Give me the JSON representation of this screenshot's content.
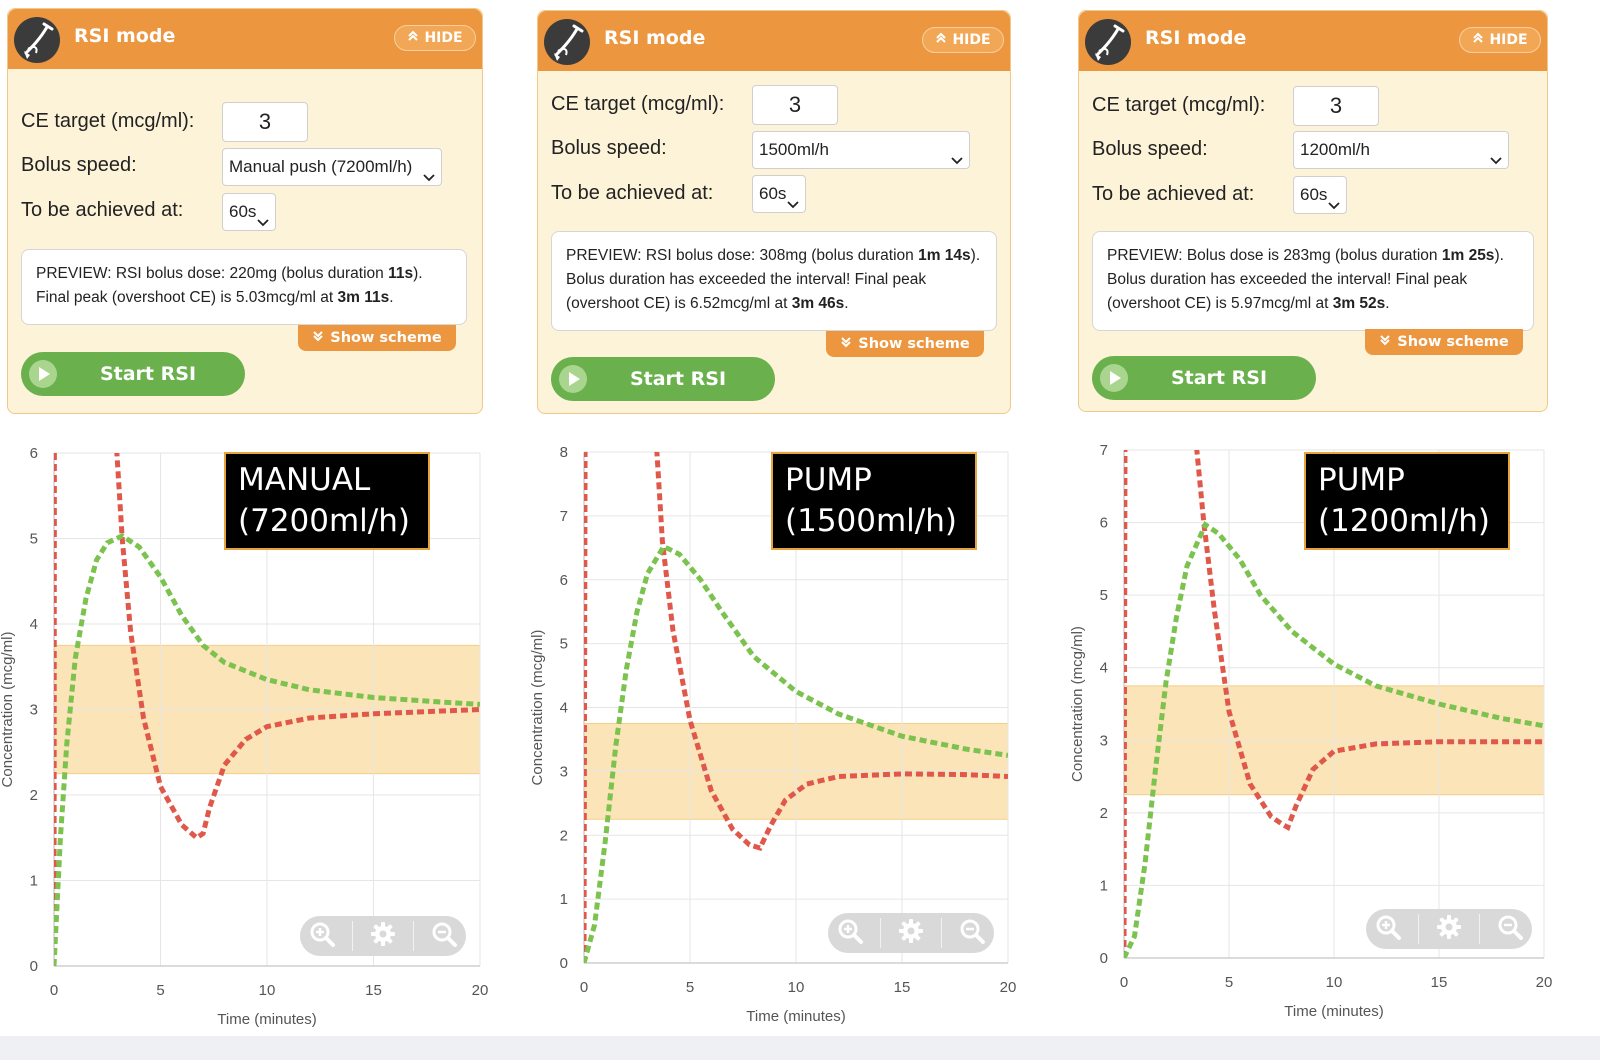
{
  "colors": {
    "header": "#ec9640",
    "panel_bg": "#fdf3d9",
    "start": "#6ab04c",
    "target_band": "#fbe4b8",
    "plasma_line": "#e0584a",
    "effect_line": "#7cc24e"
  },
  "icons": {
    "logo": "syringe-logo-icon",
    "hide": "double-chevron-up-icon",
    "scheme": "double-chevron-down-icon",
    "start": "play-icon",
    "zoom_in": "zoom-in-icon",
    "settings": "gear-icon",
    "zoom_out": "zoom-out-icon"
  },
  "panels": [
    {
      "title": "RSI mode",
      "hide_label": "HIDE",
      "ce_label": "CE target (mcg/ml):",
      "ce_value": "3",
      "bolus_label": "Bolus speed:",
      "bolus_value": "Manual push (7200ml/h)",
      "achieve_label": "To be achieved at:",
      "achieve_value": "60s",
      "preview": {
        "p1": "PREVIEW: RSI bolus dose: 220mg (bolus duration ",
        "b1": "11s",
        "p2": "). Final peak (overshoot CE) is 5.03mcg/ml at ",
        "b2": "3m 11s",
        "p3": "."
      },
      "scheme_label": "Show scheme",
      "start_label": "Start RSI"
    },
    {
      "title": "RSI mode",
      "hide_label": "HIDE",
      "ce_label": "CE target (mcg/ml):",
      "ce_value": "3",
      "bolus_label": "Bolus speed:",
      "bolus_value": "1500ml/h",
      "achieve_label": "To be achieved at:",
      "achieve_value": "60s",
      "preview": {
        "p1": "PREVIEW: RSI bolus dose: 308mg (bolus duration ",
        "b1": "1m 14s",
        "p2": "). Bolus duration has exceeded the interval! Final peak (overshoot CE) is 6.52mcg/ml at ",
        "b2": "3m 46s",
        "p3": "."
      },
      "scheme_label": "Show scheme",
      "start_label": "Start RSI"
    },
    {
      "title": "RSI mode",
      "hide_label": "HIDE",
      "ce_label": "CE target (mcg/ml):",
      "ce_value": "3",
      "bolus_label": "Bolus speed:",
      "bolus_value": "1200ml/h",
      "achieve_label": "To be achieved at:",
      "achieve_value": "60s",
      "preview": {
        "p1": "PREVIEW: Bolus dose is 283mg (bolus duration ",
        "b1": "1m 25s",
        "p2": "). Bolus duration has exceeded the interval! Final peak (overshoot CE) is 5.97mcg/ml at ",
        "b2": "3m 52s",
        "p3": "."
      },
      "scheme_label": "Show scheme",
      "start_label": "Start RSI"
    }
  ],
  "chart_data": [
    {
      "type": "line",
      "title": "",
      "overlay_label": [
        "MANUAL",
        "(7200ml/h)"
      ],
      "xlabel": "Time (minutes)",
      "ylabel": "Concentration (mcg/ml)",
      "xlim": [
        0,
        20
      ],
      "ylim": [
        0,
        6
      ],
      "xticks": [
        0,
        5,
        10,
        15,
        20
      ],
      "yticks": [
        0,
        1,
        2,
        3,
        4,
        5,
        6
      ],
      "target_band": [
        2.25,
        3.75
      ],
      "grid": true,
      "series": [
        {
          "line": "plasma",
          "x": [
            0,
            0.02,
            0.05,
            0.08,
            2.9,
            3.2,
            3.6,
            4.2,
            5.0,
            6.0,
            6.7,
            7.0,
            7.3,
            8.0,
            9.0,
            10.0,
            12.0,
            15.0,
            18.0,
            20.0
          ],
          "y": [
            0,
            6.2,
            6.2,
            6.2,
            6.2,
            5.0,
            3.9,
            2.9,
            2.1,
            1.65,
            1.5,
            1.55,
            1.85,
            2.35,
            2.65,
            2.8,
            2.9,
            2.95,
            2.98,
            3.0
          ]
        },
        {
          "line": "effect",
          "x": [
            0,
            0.3,
            0.6,
            1.0,
            1.5,
            2.0,
            2.5,
            3.2,
            4.0,
            5.0,
            6.0,
            7.0,
            8.0,
            10.0,
            12.0,
            15.0,
            18.0,
            20.0
          ],
          "y": [
            0,
            1.5,
            2.6,
            3.6,
            4.3,
            4.75,
            4.95,
            5.03,
            4.9,
            4.55,
            4.1,
            3.75,
            3.55,
            3.35,
            3.23,
            3.14,
            3.09,
            3.06
          ]
        }
      ]
    },
    {
      "type": "line",
      "title": "",
      "overlay_label": [
        "PUMP",
        "(1500ml/h)"
      ],
      "xlabel": "Time (minutes)",
      "ylabel": "Concentration (mcg/ml)",
      "xlim": [
        0,
        20
      ],
      "ylim": [
        0,
        8
      ],
      "xticks": [
        0,
        5,
        10,
        15,
        20
      ],
      "yticks": [
        0,
        1,
        2,
        3,
        4,
        5,
        6,
        7,
        8
      ],
      "target_band": [
        2.25,
        3.75
      ],
      "grid": true,
      "series": [
        {
          "line": "plasma",
          "x": [
            0,
            0.05,
            0.1,
            3.4,
            3.7,
            4.2,
            5.0,
            6.0,
            7.0,
            7.8,
            8.3,
            8.8,
            9.5,
            10.5,
            12.0,
            15.0,
            18.0,
            20.0
          ],
          "y": [
            0,
            8.2,
            8.2,
            8.2,
            6.6,
            5.2,
            3.8,
            2.7,
            2.1,
            1.85,
            1.8,
            2.15,
            2.55,
            2.8,
            2.92,
            2.96,
            2.95,
            2.92
          ]
        },
        {
          "line": "effect",
          "x": [
            0,
            0.5,
            1.0,
            1.5,
            2.0,
            2.5,
            3.0,
            3.76,
            4.5,
            5.5,
            6.5,
            8.0,
            10.0,
            12.0,
            15.0,
            18.0,
            20.0
          ],
          "y": [
            0,
            0.6,
            1.9,
            3.4,
            4.6,
            5.5,
            6.1,
            6.52,
            6.4,
            6.0,
            5.5,
            4.8,
            4.25,
            3.9,
            3.55,
            3.35,
            3.25
          ]
        }
      ]
    },
    {
      "type": "line",
      "title": "",
      "overlay_label": [
        "PUMP",
        "(1200ml/h)"
      ],
      "xlabel": "Time (minutes)",
      "ylabel": "Concentration (mcg/ml)",
      "xlim": [
        0,
        20
      ],
      "ylim": [
        0,
        7
      ],
      "xticks": [
        0,
        5,
        10,
        15,
        20
      ],
      "yticks": [
        0,
        1,
        2,
        3,
        4,
        5,
        6,
        7
      ],
      "target_band": [
        2.25,
        3.75
      ],
      "grid": true,
      "series": [
        {
          "line": "plasma",
          "x": [
            0,
            0.05,
            0.1,
            3.4,
            3.8,
            4.3,
            5.0,
            6.0,
            7.0,
            7.5,
            7.8,
            8.2,
            9.0,
            10.0,
            12.0,
            15.0,
            18.0,
            20.0
          ],
          "y": [
            0,
            7.2,
            7.2,
            7.2,
            6.0,
            4.8,
            3.4,
            2.4,
            1.95,
            1.85,
            1.8,
            2.1,
            2.6,
            2.85,
            2.95,
            2.98,
            2.98,
            2.98
          ]
        },
        {
          "line": "effect",
          "x": [
            0,
            0.5,
            1.0,
            1.5,
            2.0,
            2.5,
            3.0,
            3.87,
            4.5,
            5.5,
            6.5,
            8.0,
            10.0,
            12.0,
            15.0,
            18.0,
            20.0
          ],
          "y": [
            0,
            0.3,
            1.3,
            2.6,
            3.8,
            4.7,
            5.4,
            5.97,
            5.85,
            5.5,
            5.0,
            4.5,
            4.05,
            3.75,
            3.5,
            3.3,
            3.2
          ]
        }
      ]
    }
  ]
}
